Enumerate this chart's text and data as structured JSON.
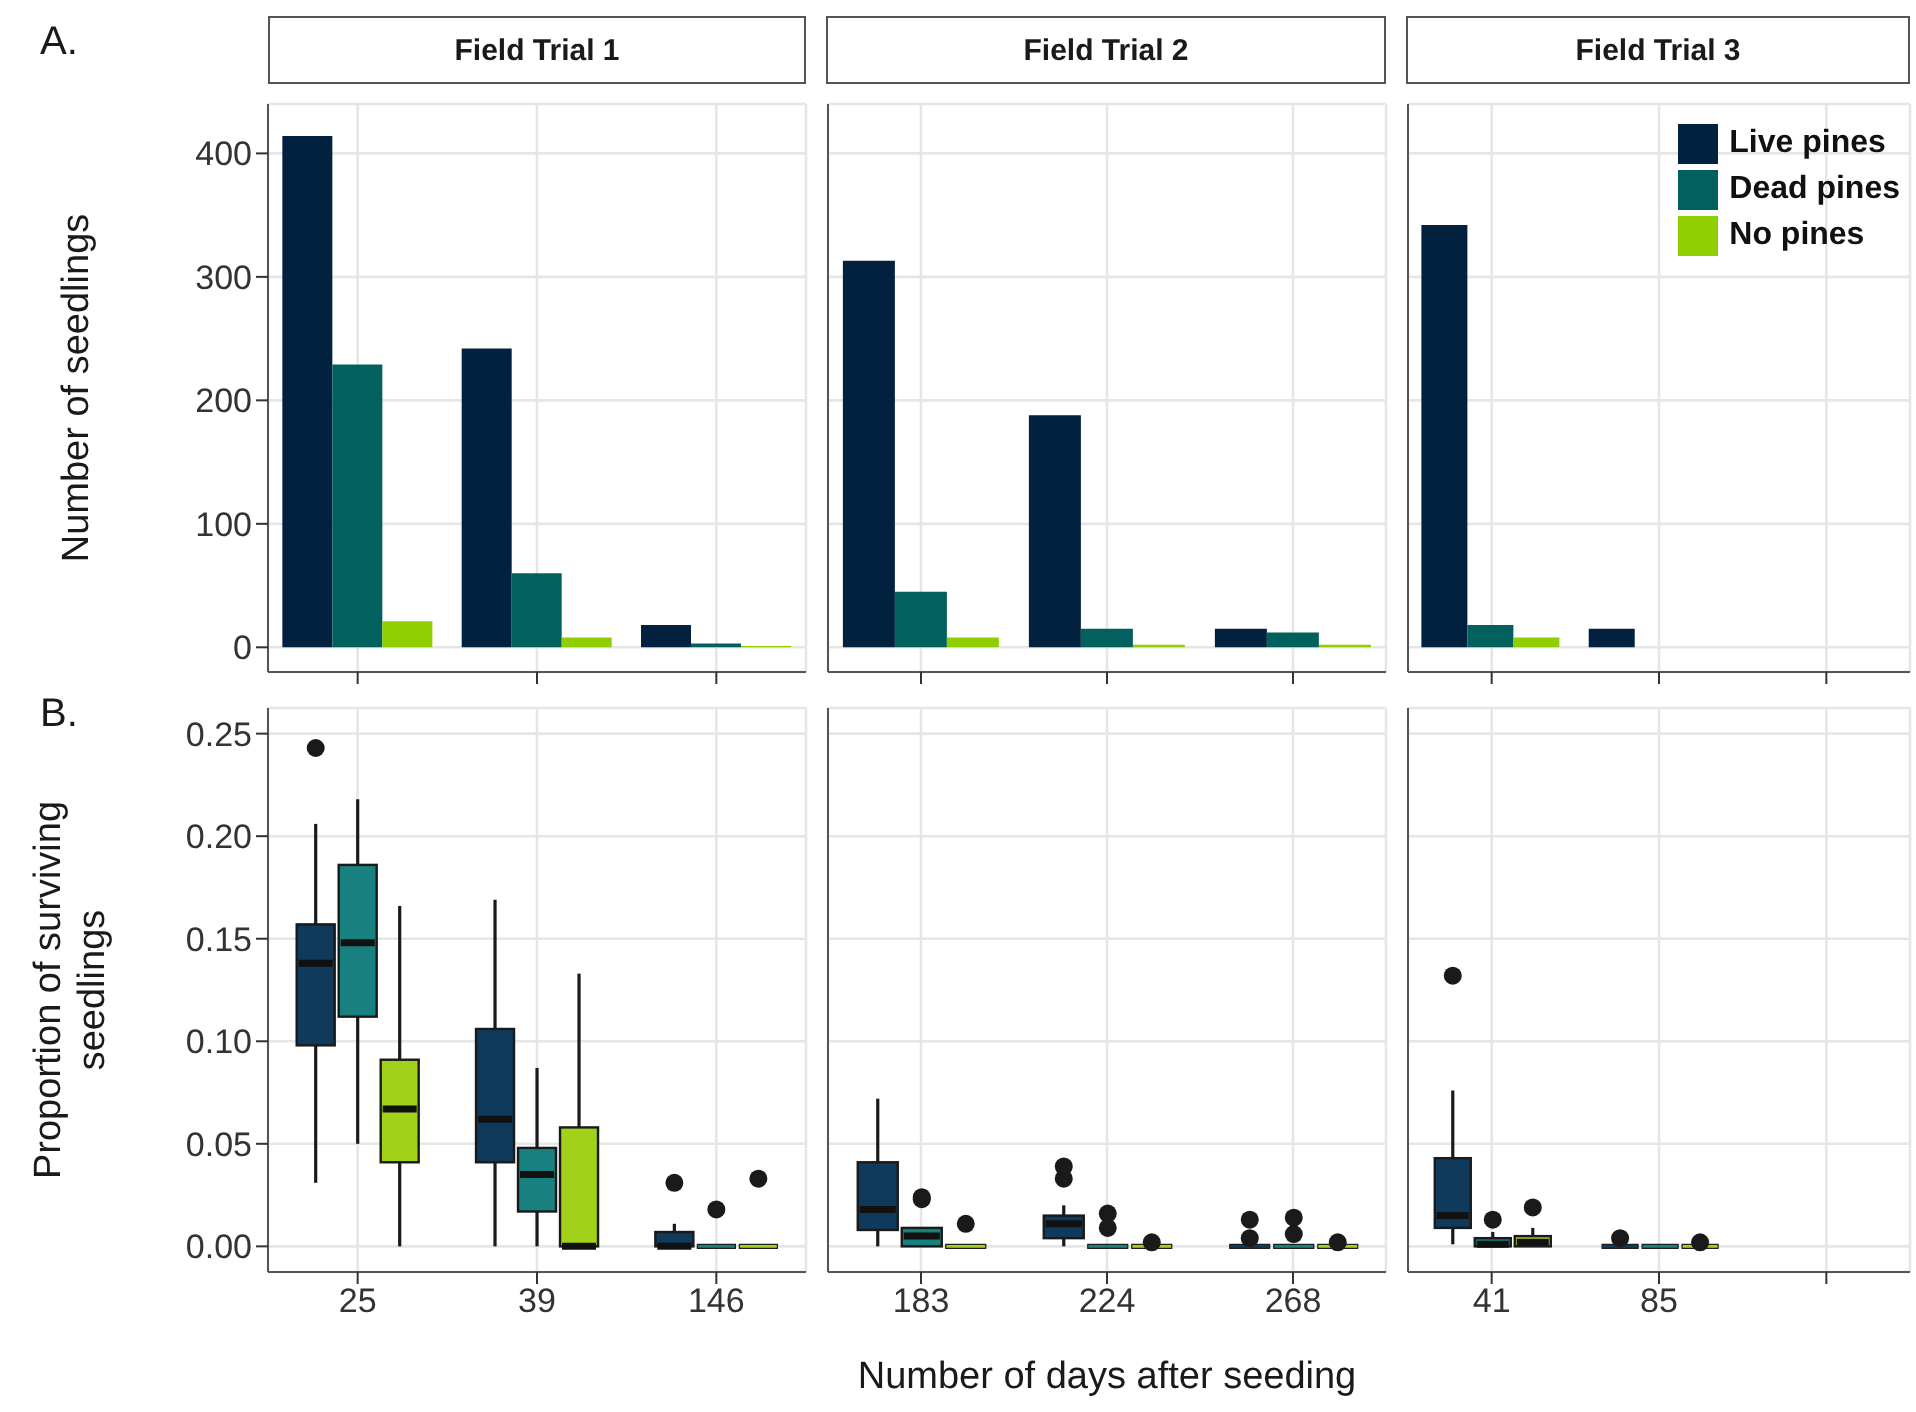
{
  "chart_data": [
    {
      "type": "bar",
      "title": "Field Trial 1",
      "ylabel": "Number of seedlings",
      "annotations": [
        "A."
      ],
      "categories": [
        "25",
        "39",
        "146"
      ],
      "series": [
        {
          "color": "#02213f",
          "values": [
            414,
            242,
            18
          ]
        },
        {
          "color": "#02615f",
          "values": [
            229,
            60,
            3
          ]
        },
        {
          "color": "#8fce00",
          "values": [
            21,
            8,
            1
          ]
        }
      ],
      "ylim": [
        -20,
        440
      ],
      "yticks": [
        0,
        100,
        200,
        300,
        400
      ],
      "grid": true,
      "tick_labels": "y"
    },
    {
      "type": "bar",
      "title": "Field Trial 2",
      "categories": [
        "183",
        "224",
        "268"
      ],
      "series": [
        {
          "color": "#02213f",
          "values": [
            313,
            188,
            15
          ]
        },
        {
          "color": "#02615f",
          "values": [
            45,
            15,
            12
          ]
        },
        {
          "color": "#8fce00",
          "values": [
            8,
            2,
            2
          ]
        }
      ],
      "ylim": [
        -20,
        440
      ],
      "yticks": [
        0,
        100,
        200,
        300,
        400
      ],
      "grid": true,
      "tick_labels": false
    },
    {
      "type": "bar",
      "title": "Field Trial 3",
      "categories": [
        "41",
        "85",
        null
      ],
      "legend": "top right",
      "series": [
        {
          "name": "Live pines",
          "color": "#02213f",
          "values": [
            342,
            15,
            null
          ]
        },
        {
          "name": "Dead pines",
          "color": "#02615f",
          "values": [
            18,
            null,
            null
          ]
        },
        {
          "name": "No pines",
          "color": "#8fce00",
          "values": [
            8,
            null,
            null
          ]
        }
      ],
      "ylim": [
        -20,
        440
      ],
      "yticks": [
        0,
        100,
        200,
        300,
        400
      ],
      "grid": true,
      "tick_labels": false
    },
    {
      "type": "box",
      "ylabel": "Proportion of surviving seedlings",
      "annotations": [
        "B."
      ],
      "categories": [
        "25",
        "39",
        "146"
      ],
      "series": [
        {
          "color": "#0f3a5c",
          "boxes": [
            {
              "low": 0.031,
              "q1": 0.098,
              "median": 0.138,
              "q3": 0.157,
              "high": 0.206,
              "outliers": [
                0.243
              ]
            },
            {
              "low": 0,
              "q1": 0.041,
              "median": 0.062,
              "q3": 0.106,
              "high": 0.169
            },
            {
              "low": 0,
              "q1": 0,
              "median": 0,
              "q3": 0.007,
              "high": 0.011,
              "outliers": [
                0.031
              ]
            }
          ]
        },
        {
          "color": "#18807f",
          "boxes": [
            {
              "low": 0.05,
              "q1": 0.112,
              "median": 0.148,
              "q3": 0.186,
              "high": 0.218
            },
            {
              "low": 0,
              "q1": 0.017,
              "median": 0.035,
              "q3": 0.048,
              "high": 0.087
            },
            {
              "low": 0,
              "q1": 0,
              "median": 0,
              "q3": 0,
              "high": 0,
              "outliers": [
                0.018
              ]
            }
          ]
        },
        {
          "color": "#a2d11a",
          "boxes": [
            {
              "low": 0,
              "q1": 0.041,
              "median": 0.067,
              "q3": 0.091,
              "high": 0.166
            },
            {
              "low": 0,
              "q1": 0,
              "median": 0,
              "q3": 0.058,
              "high": 0.133
            },
            {
              "low": 0,
              "q1": 0,
              "median": 0,
              "q3": 0,
              "high": 0,
              "outliers": [
                0.033
              ]
            }
          ]
        }
      ],
      "ylim": [
        -0.0125,
        0.2625
      ],
      "yticks": [
        {
          "value": 0,
          "label": "0.00"
        },
        {
          "value": 0.05,
          "label": "0.05"
        },
        {
          "value": 0.1,
          "label": "0.10"
        },
        {
          "value": 0.15,
          "label": "0.15"
        },
        {
          "value": 0.2,
          "label": "0.20"
        },
        {
          "value": 0.25,
          "label": "0.25"
        }
      ],
      "grid": true
    },
    {
      "type": "box",
      "xlabel": "Number of days after seeding",
      "categories": [
        "183",
        "224",
        "268"
      ],
      "series": [
        {
          "color": "#0f3a5c",
          "boxes": [
            {
              "low": 0,
              "q1": 0.008,
              "median": 0.018,
              "q3": 0.041,
              "high": 0.072
            },
            {
              "low": 0,
              "q1": 0.004,
              "median": 0.011,
              "q3": 0.015,
              "high": 0.02,
              "outliers": [
                0.039,
                0.033
              ]
            },
            {
              "low": 0,
              "q1": 0,
              "median": 0,
              "q3": 0,
              "high": 0,
              "outliers": [
                0.013,
                0.004
              ]
            }
          ]
        },
        {
          "color": "#18807f",
          "boxes": [
            {
              "low": 0,
              "q1": 0,
              "median": 0.005,
              "q3": 0.009,
              "high": 0.009,
              "outliers": [
                0.024,
                0.023
              ]
            },
            {
              "low": 0,
              "q1": 0,
              "median": 0,
              "q3": 0,
              "high": 0,
              "outliers": [
                0.016,
                0.009
              ]
            },
            {
              "low": 0,
              "q1": 0,
              "median": 0,
              "q3": 0,
              "high": 0,
              "outliers": [
                0.014,
                0.006
              ]
            }
          ]
        },
        {
          "color": "#a2d11a",
          "boxes": [
            {
              "low": 0,
              "q1": 0,
              "median": 0,
              "q3": 0,
              "high": 0,
              "outliers": [
                0.011
              ]
            },
            {
              "low": 0,
              "q1": 0,
              "median": 0,
              "q3": 0,
              "high": 0,
              "outliers": [
                0.002
              ]
            },
            {
              "low": 0,
              "q1": 0,
              "median": 0,
              "q3": 0,
              "high": 0,
              "outliers": [
                0.002
              ]
            }
          ]
        }
      ],
      "ylim": [
        -0.0125,
        0.2625
      ],
      "yticks": [
        0,
        0.05,
        0.1,
        0.15,
        0.2,
        0.25
      ],
      "grid": true,
      "tick_labels": "x"
    },
    {
      "type": "box",
      "categories": [
        "41",
        "85",
        null
      ],
      "series": [
        {
          "color": "#0f3a5c",
          "boxes": [
            {
              "low": 0.001,
              "q1": 0.009,
              "median": 0.015,
              "q3": 0.043,
              "high": 0.076,
              "outliers": [
                0.132
              ]
            },
            {
              "low": 0,
              "q1": 0,
              "median": 0,
              "q3": 0,
              "high": 0,
              "outliers": [
                0.004
              ]
            },
            null
          ]
        },
        {
          "color": "#18807f",
          "boxes": [
            {
              "low": 0,
              "q1": 0,
              "median": 0.001,
              "q3": 0.004,
              "high": 0.007,
              "outliers": [
                0.013
              ]
            },
            {
              "low": 0,
              "q1": 0,
              "median": 0,
              "q3": 0,
              "high": 0
            },
            null
          ]
        },
        {
          "color": "#a2d11a",
          "boxes": [
            {
              "low": 0,
              "q1": 0,
              "median": 0.002,
              "q3": 0.005,
              "high": 0.009,
              "outliers": [
                0.019
              ]
            },
            {
              "low": 0,
              "q1": 0,
              "median": 0,
              "q3": 0,
              "high": 0,
              "outliers": [
                0.002
              ]
            },
            null
          ]
        }
      ],
      "ylim": [
        -0.0125,
        0.2625
      ],
      "yticks": [
        0,
        0.05,
        0.1,
        0.15,
        0.2,
        0.25
      ],
      "grid": true,
      "tick_labels": "x"
    }
  ]
}
